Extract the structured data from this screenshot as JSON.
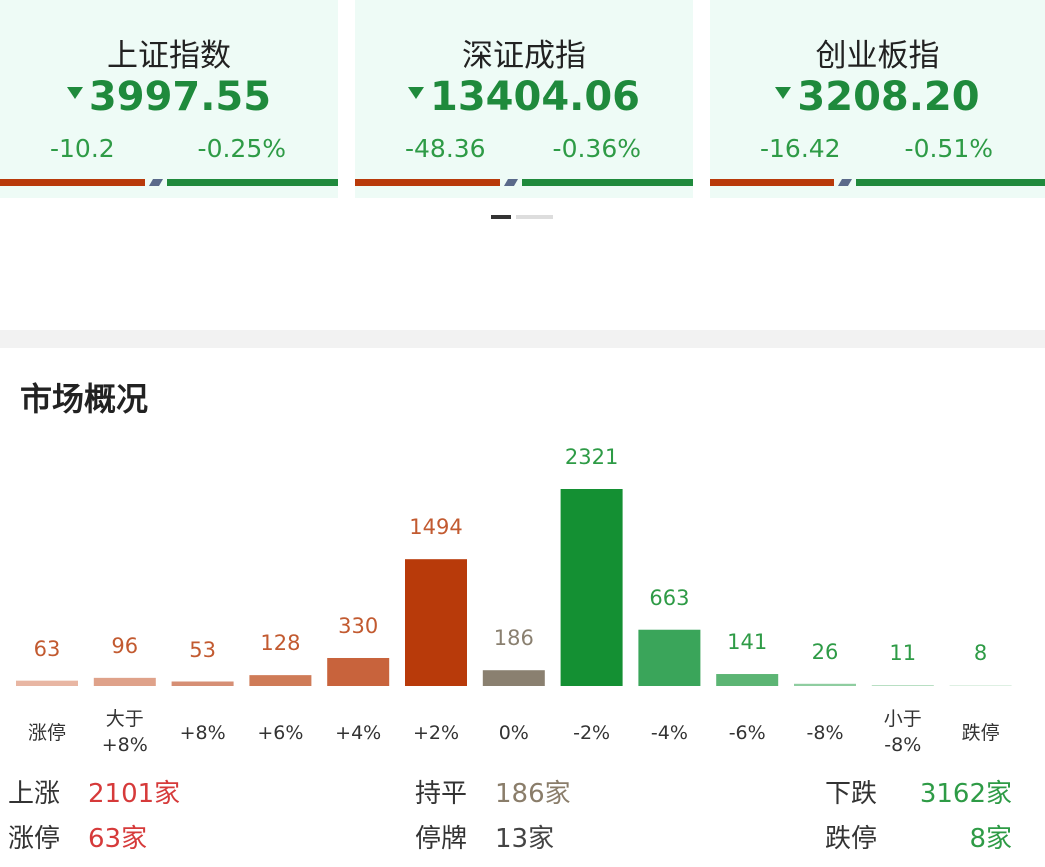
{
  "index_cards": [
    {
      "name": "上证指数",
      "value": "3997.55",
      "change": "-10.2",
      "change_pct": "-0.25%"
    },
    {
      "name": "深证成指",
      "value": "13404.06",
      "change": "-48.36",
      "change_pct": "-0.36%"
    },
    {
      "name": "创业板指",
      "value": "3208.20",
      "change": "-16.42",
      "change_pct": "-0.51%"
    }
  ],
  "section_title": "市场概况",
  "chart_data": {
    "type": "bar",
    "categories": [
      "涨停",
      "大于\n+8%",
      "+8%",
      "+6%",
      "+4%",
      "+2%",
      "0%",
      "-2%",
      "-4%",
      "-6%",
      "-8%",
      "小于\n-8%",
      "跌停"
    ],
    "values": [
      63,
      96,
      53,
      128,
      330,
      1494,
      186,
      2321,
      663,
      141,
      26,
      11,
      8
    ],
    "colors": [
      "#e8b6a3",
      "#dfa28a",
      "#d68f75",
      "#cf7b57",
      "#c8633c",
      "#b83a0a",
      "#8a8070",
      "#149033",
      "#3aa55a",
      "#5cb574",
      "#8fcda0",
      "#b4ddbf",
      "#cfe9d6"
    ],
    "label_colors": [
      "#c25a30",
      "#c25a30",
      "#c25a30",
      "#c25a30",
      "#c25a30",
      "#c25a30",
      "#8a8070",
      "#2e9b46",
      "#2e9b46",
      "#2e9b46",
      "#2e9b46",
      "#2e9b46",
      "#2e9b46"
    ]
  },
  "summary": [
    [
      {
        "label": "上涨",
        "value": "2101家"
      },
      {
        "label": "持平",
        "value": "186家"
      },
      {
        "label": "下跌",
        "value": "3162家"
      }
    ],
    [
      {
        "label": "涨停",
        "value": "63家"
      },
      {
        "label": "停牌",
        "value": "13家"
      },
      {
        "label": "跌停",
        "value": "8家"
      }
    ]
  ]
}
